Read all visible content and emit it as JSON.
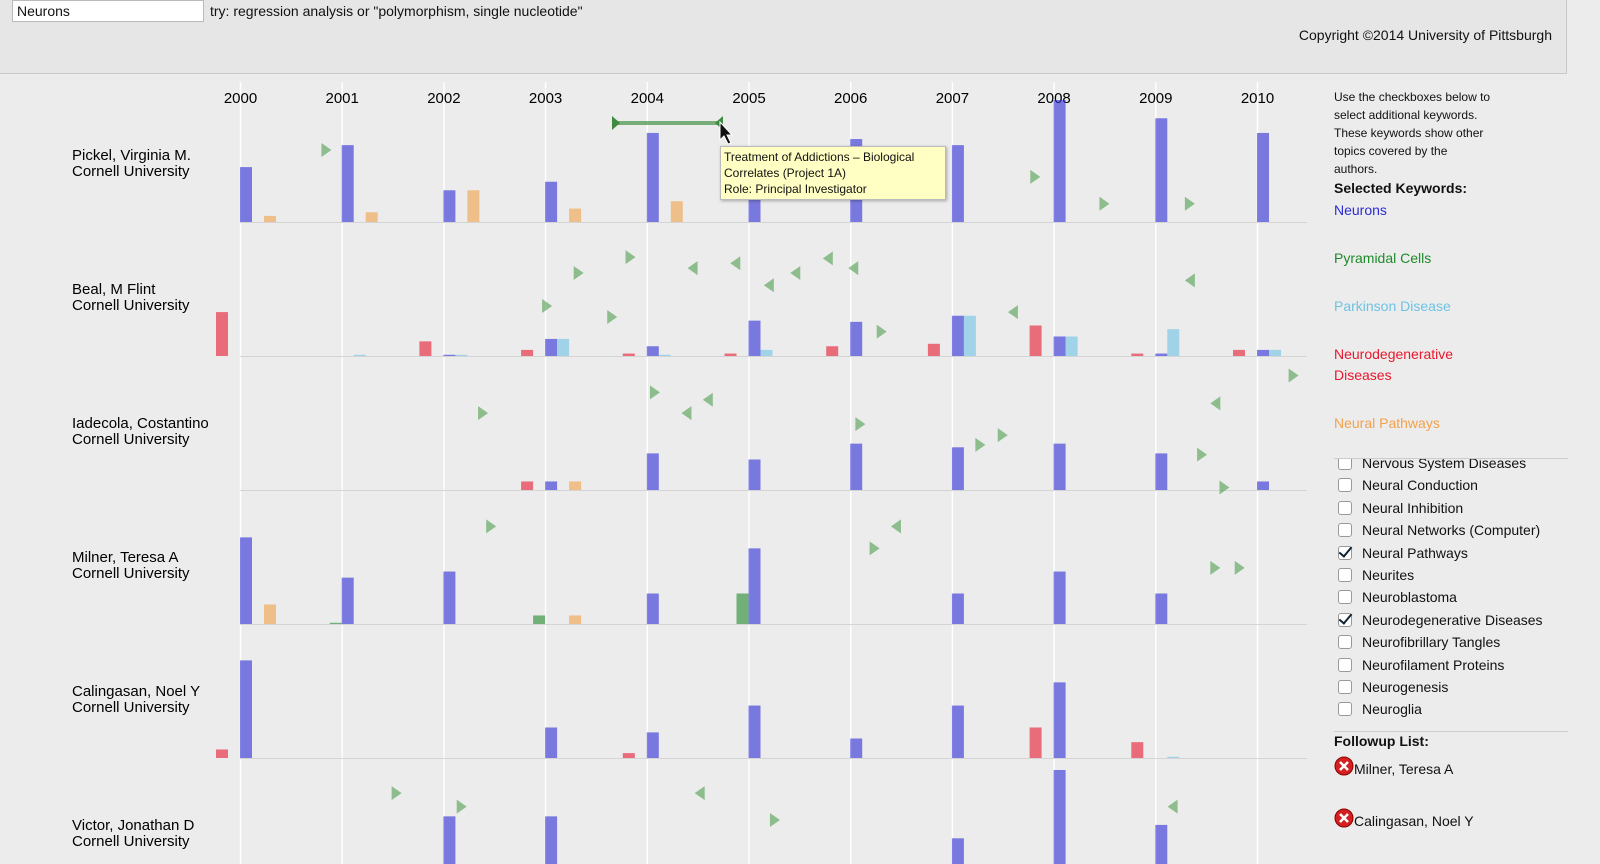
{
  "search": {
    "query": "Neurons",
    "hint": "try: regression analysis or \"polymorphism, single nucleotide\""
  },
  "copyright": "Copyright ©2014 University of Pittsburgh",
  "timeline": {
    "years": [
      2000,
      2001,
      2002,
      2003,
      2004,
      2005,
      2006,
      2007,
      2008,
      2009,
      2010
    ],
    "ylim": [
      0,
      10
    ],
    "researchers": [
      {
        "name": "Pickel, Virginia M.",
        "affiliation": "Cornell University",
        "series": [
          [
            4.5,
            6.3,
            2.6,
            3.3,
            7.3,
            2,
            6.8,
            6.3,
            10,
            8.5,
            7.3
          ],
          [
            null,
            null,
            null,
            null,
            null,
            null,
            null,
            null,
            null,
            null,
            null
          ],
          [
            null,
            null,
            null,
            null,
            null,
            null,
            null,
            null,
            null,
            null,
            null
          ],
          [
            null,
            null,
            null,
            null,
            null,
            null,
            null,
            null,
            null,
            null,
            null
          ],
          [
            0.5,
            0.8,
            2.6,
            1.1,
            1.7,
            null,
            null,
            null,
            null,
            null,
            null
          ]
        ],
        "grants": [
          {
            "x": 2000.85,
            "y": 5.9,
            "dir": "right"
          },
          {
            "x": 2007.82,
            "y": 3.7,
            "dir": "right"
          },
          {
            "x": 2008.5,
            "y": 1.5,
            "dir": "right"
          },
          {
            "x": 2009.34,
            "y": 1.5,
            "dir": "right"
          }
        ]
      },
      {
        "name": "Beal, M Flint",
        "affiliation": "Cornell University",
        "series": [
          [
            null,
            null,
            0.1,
            1.4,
            0.8,
            2.9,
            2.8,
            3.3,
            1.6,
            0.2,
            0.5
          ],
          [
            null,
            null,
            null,
            null,
            null,
            null,
            null,
            null,
            null,
            null,
            null
          ],
          [
            null,
            0.1,
            0.1,
            1.4,
            0.1,
            0.5,
            null,
            3.3,
            1.6,
            2.2,
            0.5
          ],
          [
            3.6,
            null,
            1.2,
            0.5,
            0.2,
            0.2,
            0.8,
            1.0,
            2.5,
            0.2,
            0.5
          ],
          [
            null,
            null,
            null,
            null,
            null,
            null,
            null,
            null,
            null,
            null,
            null
          ]
        ],
        "grants": [
          {
            "x": 2003.33,
            "y": 6.8,
            "dir": "right"
          },
          {
            "x": 2003.02,
            "y": 4.1,
            "dir": "right"
          },
          {
            "x": 2003.66,
            "y": 3.2,
            "dir": "right"
          },
          {
            "x": 2003.84,
            "y": 8.1,
            "dir": "right"
          },
          {
            "x": 2004.45,
            "y": 7.2,
            "dir": "left"
          },
          {
            "x": 2004.87,
            "y": 7.6,
            "dir": "left"
          },
          {
            "x": 2005.2,
            "y": 5.8,
            "dir": "left"
          },
          {
            "x": 2005.46,
            "y": 6.8,
            "dir": "left"
          },
          {
            "x": 2005.78,
            "y": 8.0,
            "dir": "left"
          },
          {
            "x": 2006.03,
            "y": 7.2,
            "dir": "left"
          },
          {
            "x": 2006.31,
            "y": 2.0,
            "dir": "right"
          },
          {
            "x": 2007.6,
            "y": 3.6,
            "dir": "left"
          },
          {
            "x": 2009.34,
            "y": 6.2,
            "dir": "left"
          },
          {
            "x": 2010.36,
            "y": -1.6,
            "dir": "right"
          }
        ]
      },
      {
        "name": "Iadecola, Costantino",
        "affiliation": "Cornell University",
        "series": [
          [
            null,
            null,
            null,
            0.7,
            3.0,
            2.5,
            3.8,
            3.5,
            3.8,
            3.0,
            0.7
          ],
          [
            null,
            null,
            null,
            null,
            null,
            null,
            null,
            null,
            null,
            null,
            null
          ],
          [
            null,
            null,
            null,
            null,
            null,
            null,
            null,
            null,
            null,
            null,
            null
          ],
          [
            null,
            null,
            null,
            0.7,
            null,
            null,
            null,
            null,
            null,
            null,
            null
          ],
          [
            null,
            null,
            null,
            0.7,
            null,
            null,
            null,
            null,
            null,
            null,
            null
          ]
        ],
        "grants": [
          {
            "x": 2002.39,
            "y": 6.3,
            "dir": "right"
          },
          {
            "x": 2004.08,
            "y": 8.0,
            "dir": "right"
          },
          {
            "x": 2004.39,
            "y": 6.3,
            "dir": "left"
          },
          {
            "x": 2004.6,
            "y": 7.4,
            "dir": "left"
          },
          {
            "x": 2006.1,
            "y": 5.4,
            "dir": "right"
          },
          {
            "x": 2007.28,
            "y": 3.7,
            "dir": "right"
          },
          {
            "x": 2007.5,
            "y": 4.5,
            "dir": "right"
          },
          {
            "x": 2009.46,
            "y": 2.9,
            "dir": "right"
          },
          {
            "x": 2009.68,
            "y": 0.2,
            "dir": "right"
          },
          {
            "x": 2009.59,
            "y": 7.1,
            "dir": "left"
          }
        ]
      },
      {
        "name": "Milner, Teresa A",
        "affiliation": "Cornell University",
        "series": [
          [
            7.1,
            3.8,
            4.3,
            null,
            2.5,
            6.2,
            null,
            2.5,
            4.3,
            2.5,
            null
          ],
          [
            null,
            0.1,
            null,
            0.7,
            null,
            2.5,
            null,
            null,
            null,
            null,
            null
          ],
          [
            null,
            null,
            null,
            null,
            null,
            null,
            null,
            null,
            null,
            null,
            null
          ],
          [
            null,
            null,
            null,
            null,
            null,
            null,
            null,
            null,
            null,
            null,
            null
          ],
          [
            1.6,
            null,
            null,
            0.7,
            null,
            null,
            null,
            null,
            null,
            null,
            null
          ]
        ],
        "grants": [
          {
            "x": 2002.47,
            "y": 8.0,
            "dir": "right"
          },
          {
            "x": 2006.24,
            "y": 6.2,
            "dir": "right"
          },
          {
            "x": 2006.45,
            "y": 8.0,
            "dir": "left"
          },
          {
            "x": 2009.59,
            "y": 4.6,
            "dir": "right"
          },
          {
            "x": 2009.83,
            "y": 4.6,
            "dir": "right"
          }
        ]
      },
      {
        "name": "Calingasan, Noel Y",
        "affiliation": "Cornell University",
        "series": [
          [
            8.0,
            null,
            null,
            2.5,
            2.1,
            4.3,
            1.6,
            4.3,
            6.2,
            null,
            null
          ],
          [
            null,
            null,
            null,
            null,
            null,
            null,
            null,
            null,
            null,
            null,
            null
          ],
          [
            null,
            null,
            null,
            null,
            null,
            null,
            null,
            null,
            null,
            0.1,
            null
          ],
          [
            0.7,
            null,
            null,
            null,
            0.4,
            null,
            null,
            null,
            2.5,
            1.3,
            null
          ],
          [
            null,
            null,
            null,
            null,
            null,
            null,
            null,
            null,
            null,
            null,
            null
          ]
        ],
        "grants": []
      },
      {
        "name": "Victor, Jonathan D",
        "affiliation": "Cornell University",
        "series": [
          [
            null,
            null,
            6.2,
            6.2,
            null,
            null,
            null,
            4.4,
            10,
            5.5,
            null
          ],
          [
            null,
            null,
            null,
            null,
            null,
            null,
            null,
            null,
            null,
            null,
            null
          ],
          [
            null,
            null,
            null,
            null,
            null,
            null,
            null,
            null,
            null,
            null,
            null
          ],
          [
            null,
            null,
            null,
            null,
            null,
            null,
            null,
            null,
            null,
            null,
            null
          ],
          [
            null,
            null,
            null,
            null,
            null,
            null,
            null,
            null,
            null,
            null,
            null
          ]
        ],
        "grants": [
          {
            "x": 2001.54,
            "y": 8.1,
            "dir": "right"
          },
          {
            "x": 2002.18,
            "y": 7.0,
            "dir": "right"
          },
          {
            "x": 2004.52,
            "y": 8.1,
            "dir": "left"
          },
          {
            "x": 2005.26,
            "y": 5.9,
            "dir": "right"
          },
          {
            "x": 2009.17,
            "y": 7.0,
            "dir": "left"
          }
        ]
      }
    ]
  },
  "tooltip": {
    "lines": [
      "Treatment of Addictions – Biological",
      "Correlates (Project 1A)",
      "Role: Principal Investigator"
    ]
  },
  "panel": {
    "instructions": "Use the checkboxes below to select additional keywords. These keywords show other topics covered by the authors.",
    "selected_title": "Selected Keywords:",
    "keywords": [
      {
        "name": "Neurons",
        "color": "#2b2bd6"
      },
      {
        "name": "Pyramidal Cells",
        "color": "#1f8a2a"
      },
      {
        "name": "Parkinson Disease",
        "color": "#6ec3e4"
      },
      {
        "name": "Neurodegenerative Diseases",
        "color": "#e8182e"
      },
      {
        "name": "Neural Pathways",
        "color": "#f2a24a"
      }
    ],
    "checklist": [
      {
        "label": "Nervous System Diseases",
        "checked": false
      },
      {
        "label": "Neural Conduction",
        "checked": false
      },
      {
        "label": "Neural Inhibition",
        "checked": false
      },
      {
        "label": "Neural Networks (Computer)",
        "checked": false
      },
      {
        "label": "Neural Pathways",
        "checked": true
      },
      {
        "label": "Neurites",
        "checked": false
      },
      {
        "label": "Neuroblastoma",
        "checked": false
      },
      {
        "label": "Neurodegenerative Diseases",
        "checked": true
      },
      {
        "label": "Neurofibrillary Tangles",
        "checked": false
      },
      {
        "label": "Neurofilament Proteins",
        "checked": false
      },
      {
        "label": "Neurogenesis",
        "checked": false
      },
      {
        "label": "Neuroglia",
        "checked": false
      }
    ],
    "followup_title": "Followup List:",
    "followup": [
      "Milner, Teresa A",
      "Calingasan, Noel Y"
    ]
  }
}
